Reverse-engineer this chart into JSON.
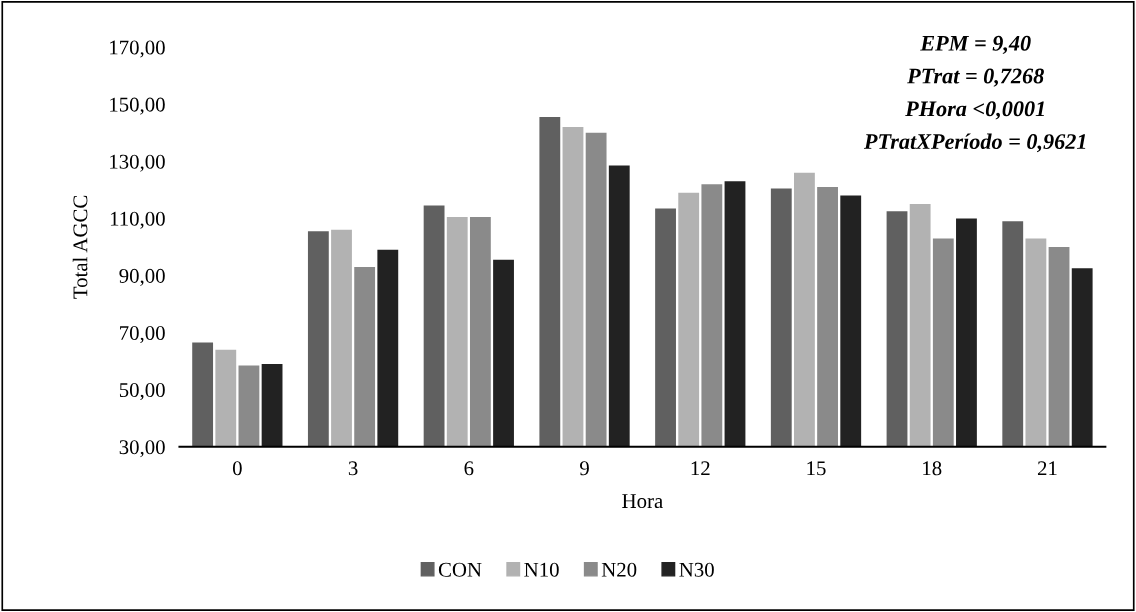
{
  "chart_data": {
    "type": "bar",
    "xlabel": "Hora",
    "ylabel": "Total AGCC",
    "categories": [
      "0",
      "3",
      "6",
      "9",
      "12",
      "15",
      "18",
      "21"
    ],
    "series": [
      {
        "name": "CON",
        "color": "#606060",
        "values": [
          66.5,
          105.5,
          114.5,
          145.5,
          113.5,
          120.5,
          112.5,
          109
        ]
      },
      {
        "name": "N10",
        "color": "#b2b2b2",
        "values": [
          64,
          106,
          110.5,
          142,
          119,
          126,
          115,
          103
        ]
      },
      {
        "name": "N20",
        "color": "#8a8a8a",
        "values": [
          58.5,
          93,
          110.5,
          140,
          122,
          121,
          103,
          100
        ]
      },
      {
        "name": "N30",
        "color": "#222222",
        "values": [
          59,
          99,
          95.5,
          128.5,
          123,
          118,
          110,
          92.5
        ]
      }
    ],
    "ylim": [
      30,
      170
    ],
    "yticks": [
      {
        "value": 30,
        "label": "30,00"
      },
      {
        "value": 50,
        "label": "50,00"
      },
      {
        "value": 70,
        "label": "70,00"
      },
      {
        "value": 90,
        "label": "90,00"
      },
      {
        "value": 110,
        "label": "110,00"
      },
      {
        "value": 130,
        "label": "130,00"
      },
      {
        "value": 150,
        "label": "150,00"
      },
      {
        "value": 170,
        "label": "170,00"
      }
    ],
    "grid": false,
    "legend": "bottom",
    "annotations": [
      "EPM = 9,40",
      "PTrat = 0,7268",
      "PHora <0,0001",
      "PTratXPeríodo = 0,9621"
    ]
  }
}
